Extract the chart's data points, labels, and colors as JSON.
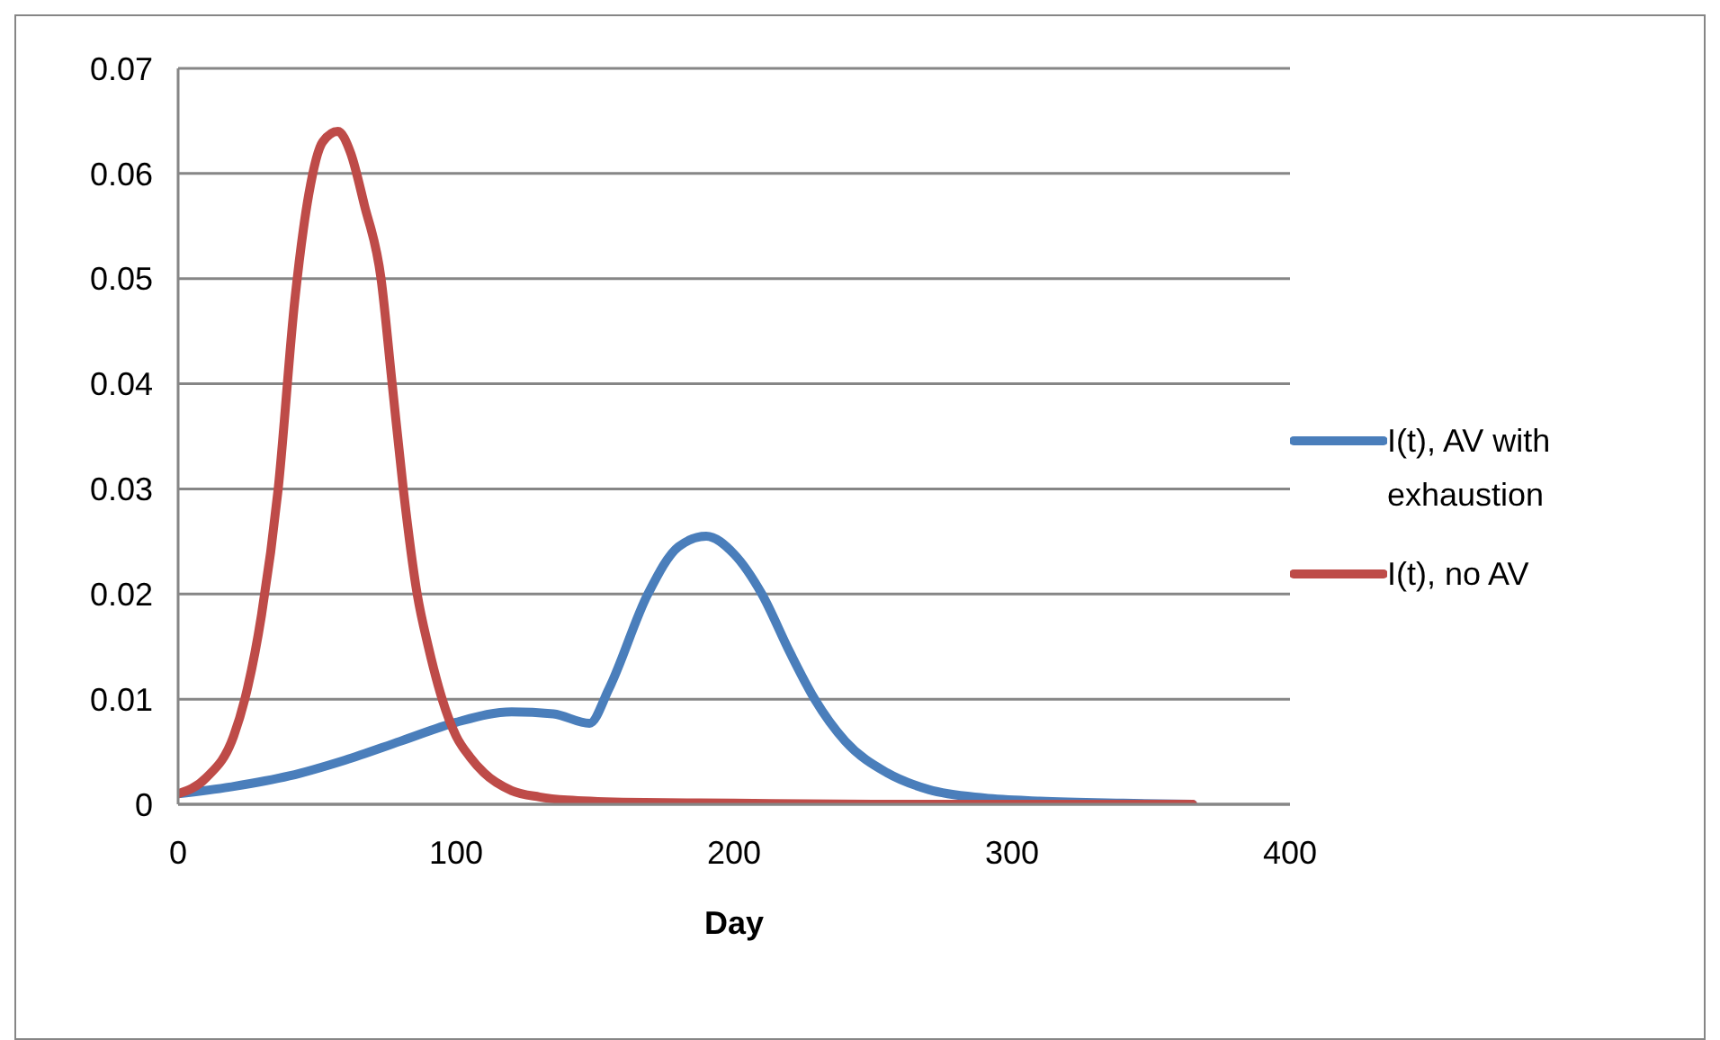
{
  "chart_data": {
    "type": "line",
    "xlabel": "Day",
    "xlim": [
      0,
      400
    ],
    "xticks": [
      0,
      100,
      200,
      300,
      400
    ],
    "ylim": [
      0,
      0.07
    ],
    "yticks": [
      0,
      0.01,
      0.02,
      0.03,
      0.04,
      0.05,
      0.06,
      0.07
    ],
    "grid": "y",
    "legend": "right",
    "marker": "none",
    "line_style": "solid",
    "series": [
      {
        "name": "I(t), AV with exhaustion",
        "color": "#4a7ebb",
        "x": [
          0,
          20,
          40,
          60,
          80,
          100,
          120,
          135,
          148,
          155,
          169,
          180,
          190,
          200,
          210,
          220,
          229,
          240,
          255,
          270,
          290,
          310,
          340,
          365
        ],
        "values": [
          0.001,
          0.0017,
          0.0027,
          0.0042,
          0.006,
          0.0078,
          0.0088,
          0.0086,
          0.0077,
          0.011,
          0.02,
          0.0245,
          0.0255,
          0.0238,
          0.02,
          0.0145,
          0.01,
          0.006,
          0.003,
          0.0014,
          0.0006,
          0.0003,
          0.0001,
          0
        ]
      },
      {
        "name": "I(t), no AV",
        "color": "#be4b48",
        "x": [
          0,
          10,
          20,
          24,
          30,
          36,
          42,
          47,
          52,
          57.5,
          62,
          67,
          73,
          77,
          81,
          86,
          90,
          95,
          100,
          105,
          110,
          120,
          130,
          140,
          160,
          200,
          250,
          365
        ],
        "values": [
          0.001,
          0.0025,
          0.0065,
          0.01,
          0.018,
          0.03,
          0.048,
          0.058,
          0.063,
          0.064,
          0.062,
          0.057,
          0.05,
          0.04,
          0.03,
          0.02,
          0.015,
          0.01,
          0.0065,
          0.0045,
          0.003,
          0.0013,
          0.0007,
          0.0004,
          0.0002,
          0.0001,
          0,
          0
        ]
      }
    ]
  }
}
